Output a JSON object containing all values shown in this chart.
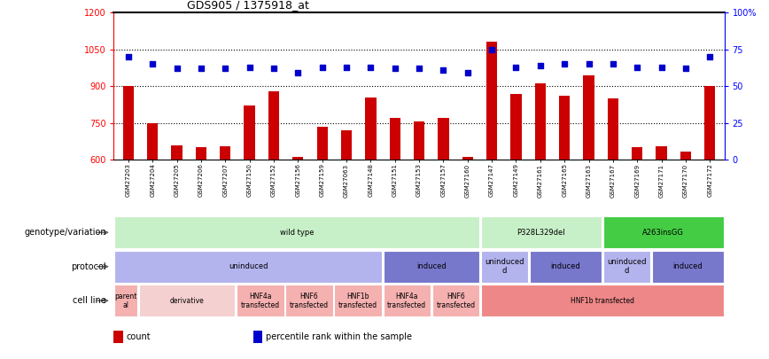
{
  "title": "GDS905 / 1375918_at",
  "samples": [
    "GSM27203",
    "GSM27204",
    "GSM27205",
    "GSM27206",
    "GSM27207",
    "GSM27150",
    "GSM27152",
    "GSM27156",
    "GSM27159",
    "GSM27063",
    "GSM27148",
    "GSM27151",
    "GSM27153",
    "GSM27157",
    "GSM27160",
    "GSM27147",
    "GSM27149",
    "GSM27161",
    "GSM27165",
    "GSM27163",
    "GSM27167",
    "GSM27169",
    "GSM27171",
    "GSM27170",
    "GSM27172"
  ],
  "counts": [
    900,
    750,
    660,
    650,
    655,
    820,
    878,
    610,
    735,
    720,
    855,
    770,
    755,
    770,
    610,
    1080,
    870,
    910,
    860,
    945,
    850,
    650,
    655,
    635,
    900
  ],
  "percentiles": [
    70,
    65,
    62,
    62,
    62,
    63,
    62,
    59,
    63,
    63,
    63,
    62,
    62,
    61,
    59,
    75,
    63,
    64,
    65,
    65,
    65,
    63,
    63,
    62,
    70
  ],
  "ylim_left": [
    600,
    1200
  ],
  "ylim_right": [
    0,
    100
  ],
  "yticks_left": [
    600,
    750,
    900,
    1050,
    1200
  ],
  "yticks_right": [
    0,
    25,
    50,
    75,
    100
  ],
  "ytick_labels_right": [
    "0",
    "25",
    "50",
    "75",
    "100%"
  ],
  "bar_color": "#cc0000",
  "dot_color": "#0000cc",
  "annotation_rows": [
    {
      "label": "genotype/variation",
      "segments": [
        {
          "text": "wild type",
          "start": 0,
          "end": 15,
          "color": "#c8f0c8"
        },
        {
          "text": "P328L329del",
          "start": 15,
          "end": 20,
          "color": "#c8f0c8"
        },
        {
          "text": "A263insGG",
          "start": 20,
          "end": 25,
          "color": "#44cc44"
        }
      ]
    },
    {
      "label": "protocol",
      "segments": [
        {
          "text": "uninduced",
          "start": 0,
          "end": 11,
          "color": "#b3b3ee"
        },
        {
          "text": "induced",
          "start": 11,
          "end": 15,
          "color": "#7777cc"
        },
        {
          "text": "uninduced\nd",
          "start": 15,
          "end": 17,
          "color": "#b3b3ee"
        },
        {
          "text": "induced",
          "start": 17,
          "end": 20,
          "color": "#7777cc"
        },
        {
          "text": "uninduced\nd",
          "start": 20,
          "end": 22,
          "color": "#b3b3ee"
        },
        {
          "text": "induced",
          "start": 22,
          "end": 25,
          "color": "#7777cc"
        }
      ]
    },
    {
      "label": "cell line",
      "segments": [
        {
          "text": "parent\nal",
          "start": 0,
          "end": 1,
          "color": "#f5b0b0"
        },
        {
          "text": "derivative",
          "start": 1,
          "end": 5,
          "color": "#f5d0d0"
        },
        {
          "text": "HNF4a\ntransfected",
          "start": 5,
          "end": 7,
          "color": "#f5b0b0"
        },
        {
          "text": "HNF6\ntransfected",
          "start": 7,
          "end": 9,
          "color": "#f5b0b0"
        },
        {
          "text": "HNF1b\ntransfected",
          "start": 9,
          "end": 11,
          "color": "#f5b0b0"
        },
        {
          "text": "HNF4a\ntransfected",
          "start": 11,
          "end": 13,
          "color": "#f5b0b0"
        },
        {
          "text": "HNF6\ntransfected",
          "start": 13,
          "end": 15,
          "color": "#f5b0b0"
        },
        {
          "text": "HNF1b transfected",
          "start": 15,
          "end": 25,
          "color": "#ee8888"
        }
      ]
    }
  ],
  "legend_items": [
    {
      "color": "#cc0000",
      "label": "count"
    },
    {
      "color": "#0000cc",
      "label": "percentile rank within the sample"
    }
  ]
}
